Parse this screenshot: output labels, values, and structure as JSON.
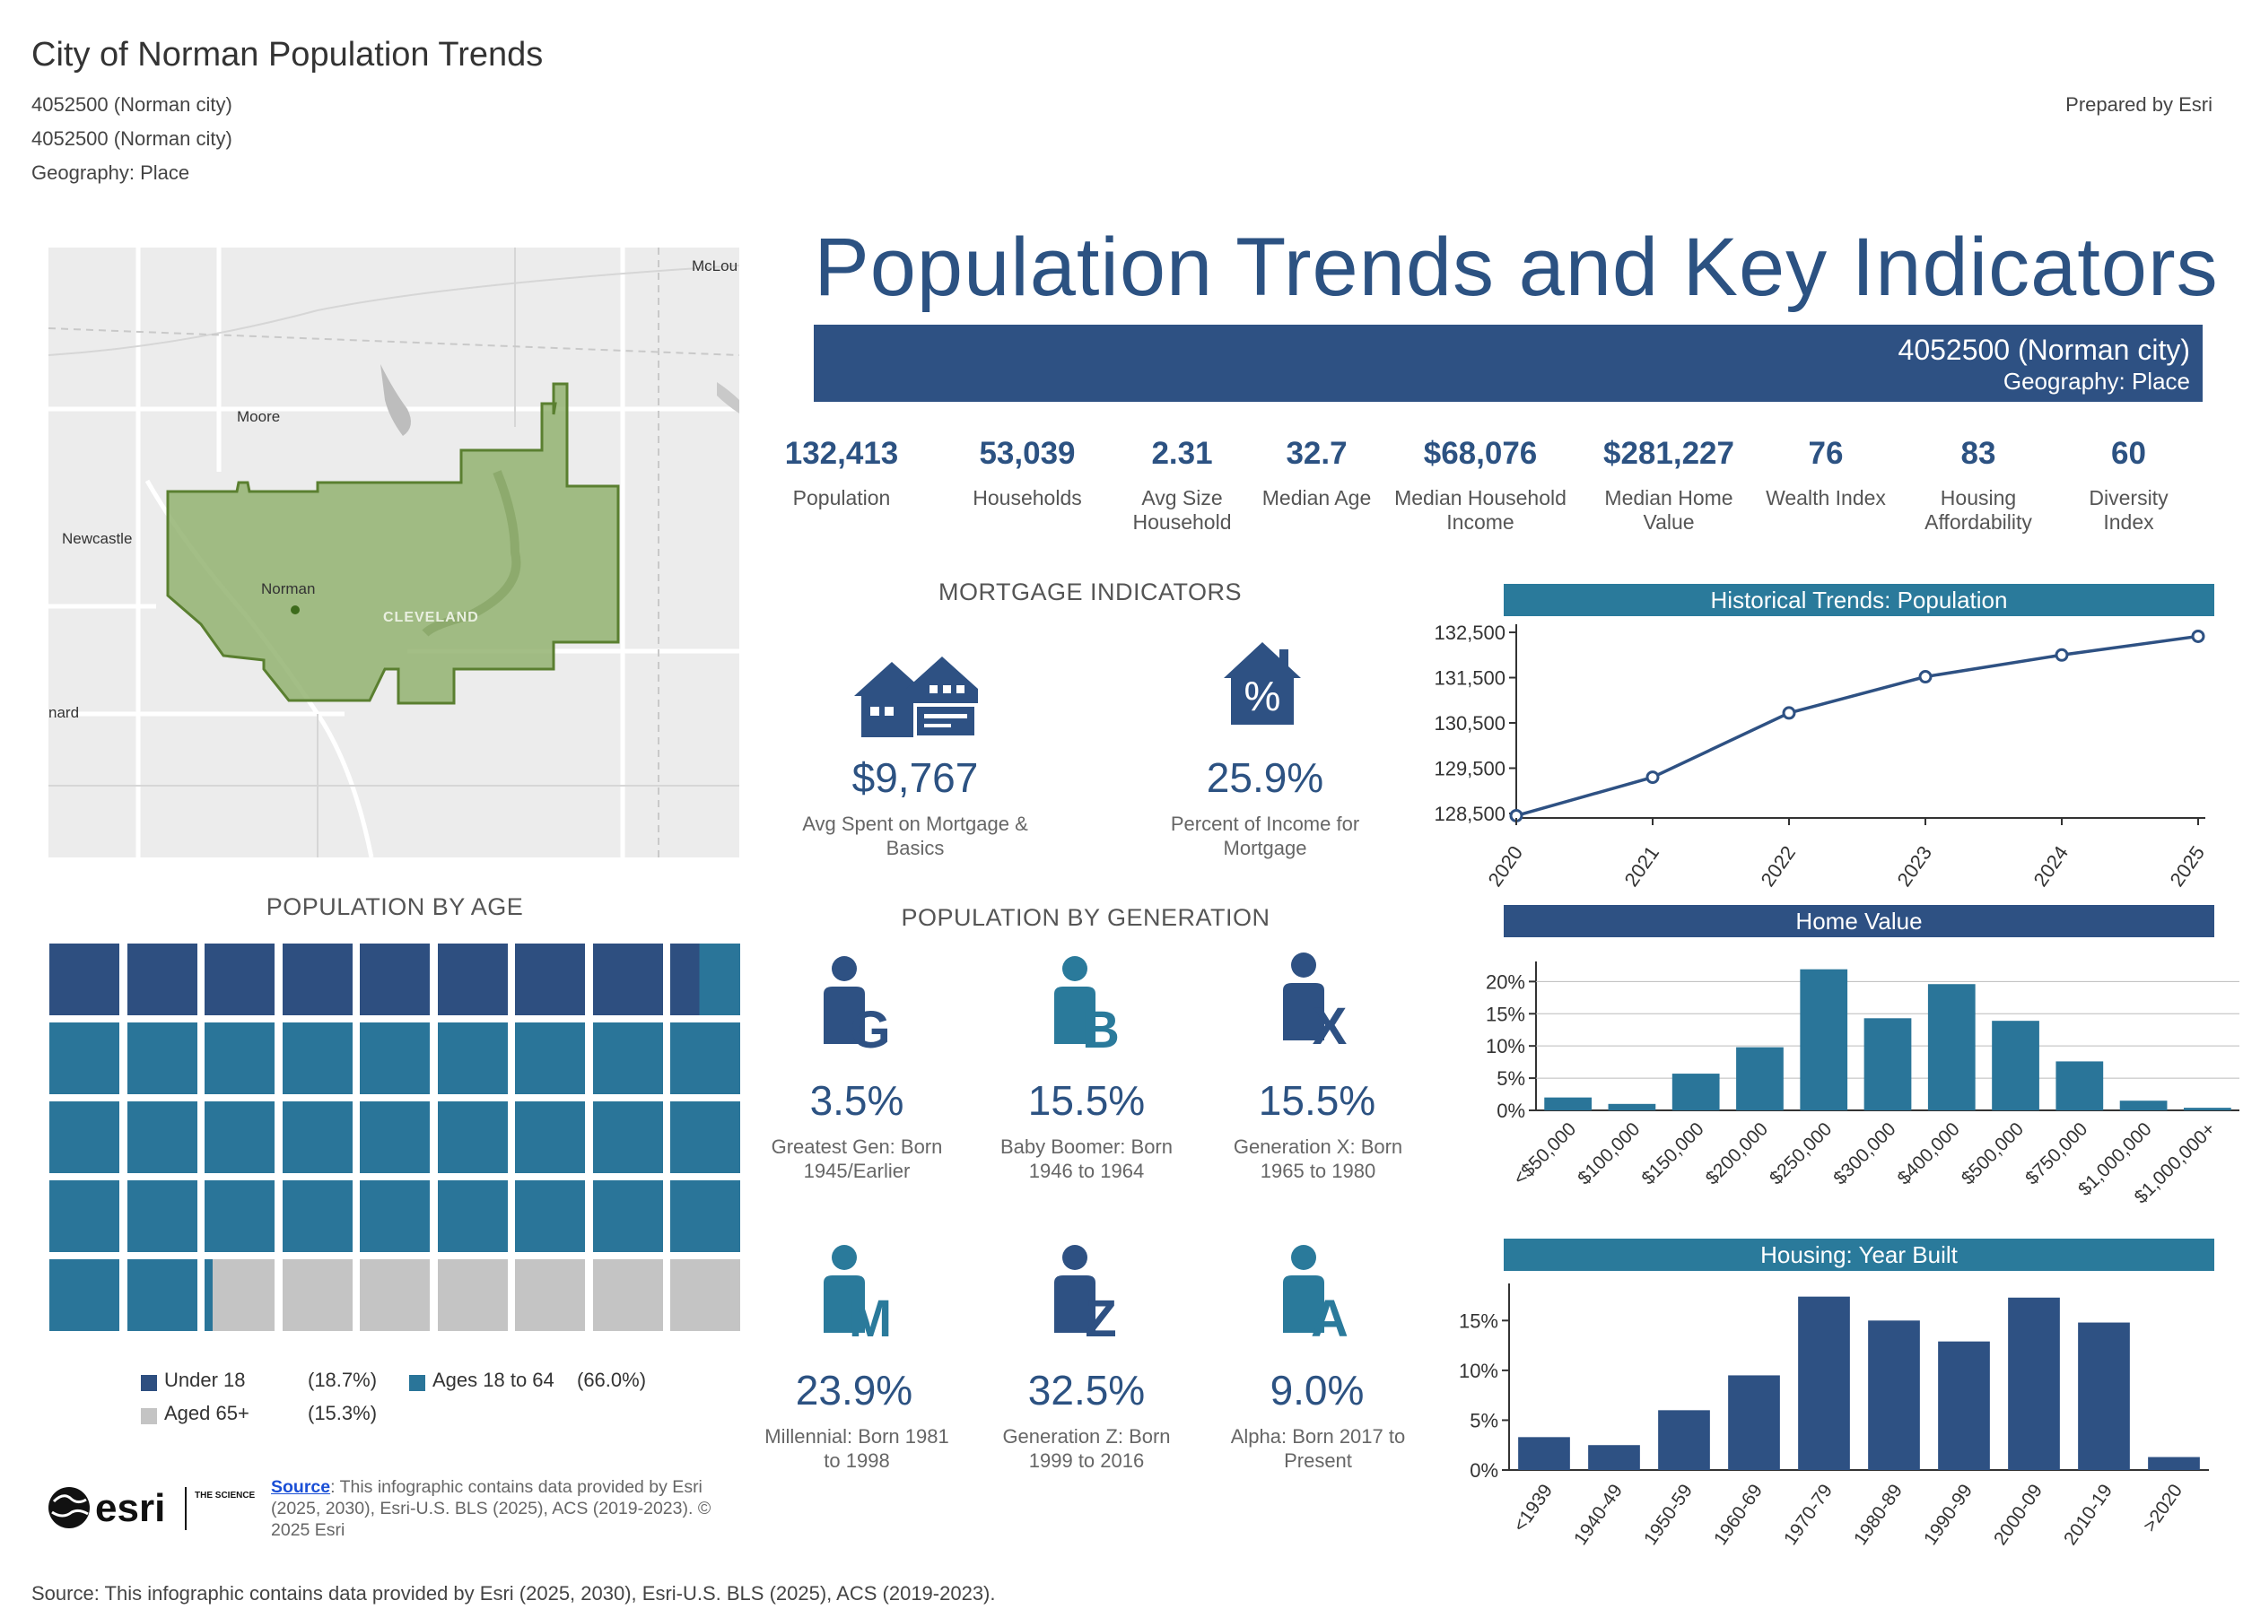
{
  "header": {
    "report_title": "City of Norman Population Trends",
    "line1": "4052500 (Norman city)",
    "line2": "4052500 (Norman city)",
    "line3": "Geography: Place",
    "prepared_by": "Prepared by Esri"
  },
  "map": {
    "labels": {
      "moore": "Moore",
      "newcastle": "Newcastle",
      "norman": "Norman",
      "cleveland": "CLEVELAND",
      "mcloud": "McLou",
      "blanchard": "nard"
    },
    "colors": {
      "boundary_fill": "#8fb06b",
      "boundary_stroke": "#5a7f30",
      "land": "#ececec"
    }
  },
  "main": {
    "title": "Population Trends and Key Indicators",
    "band_name": "4052500 (Norman city)",
    "band_geo": "Geography: Place"
  },
  "kpis": [
    {
      "value": "132,413",
      "label": "Population"
    },
    {
      "value": "53,039",
      "label": "Households"
    },
    {
      "value": "2.31",
      "label": "Avg Size Household"
    },
    {
      "value": "32.7",
      "label": "Median Age"
    },
    {
      "value": "$68,076",
      "label": "Median Household Income"
    },
    {
      "value": "$281,227",
      "label": "Median Home Value"
    },
    {
      "value": "76",
      "label": "Wealth Index"
    },
    {
      "value": "83",
      "label": "Housing Affordability"
    },
    {
      "value": "60",
      "label": "Diversity Index"
    }
  ],
  "mortgage": {
    "title": "MORTGAGE INDICATORS",
    "items": [
      {
        "value": "$9,767",
        "label": "Avg Spent on Mortgage & Basics",
        "icon": "house-payment-icon"
      },
      {
        "value": "25.9%",
        "label": "Percent of Income for Mortgage",
        "icon": "house-percent-icon"
      }
    ],
    "percent_symbol": "%"
  },
  "generation": {
    "title": "POPULATION BY GENERATION",
    "items": [
      {
        "letter": "G",
        "value": "3.5%",
        "label": "Greatest Gen:  Born 1945/Earlier",
        "color": "#2e5183"
      },
      {
        "letter": "B",
        "value": "15.5%",
        "label": "Baby Boomer:  Born 1946 to 1964",
        "color": "#2a7a9b"
      },
      {
        "letter": "X",
        "value": "15.5%",
        "label": "Generation X:  Born 1965 to 1980",
        "color": "#2e5183"
      },
      {
        "letter": "M",
        "value": "23.9%",
        "label": "Millennial:  Born 1981 to 1998",
        "color": "#2a7a9b"
      },
      {
        "letter": "Z",
        "value": "32.5%",
        "label": "Generation Z:   Born 1999 to 2016",
        "color": "#2e5183"
      },
      {
        "letter": "A",
        "value": "9.0%",
        "label": "Alpha:  Born  2017 to Present",
        "color": "#2a7a9b"
      }
    ]
  },
  "age": {
    "title": "POPULATION BY AGE",
    "legend": [
      {
        "label": "Under 18",
        "pct": "(18.7%)",
        "color": "#2e4f80"
      },
      {
        "label": "Ages 18 to 64",
        "pct": "(66.0%)",
        "color": "#2a7599"
      },
      {
        "label": "Aged 65+",
        "pct": "(15.3%)",
        "color": "#c4c4c4"
      }
    ]
  },
  "source_small": {
    "link": "Source",
    "text": ": This infographic contains data provided by Esri (2025, 2030), Esri-U.S. BLS (2025), ACS (2019-2023). © 2025 Esri"
  },
  "esri_logo": {
    "word": "esri",
    "tagline": "THE SCIENCE OF WHERE"
  },
  "footer": {
    "source": "Source: This infographic contains data provided by Esri (2025, 2030), Esri-U.S. BLS (2025), ACS (2019-2023)."
  },
  "chart_data": [
    {
      "id": "population-trend",
      "type": "line",
      "title": "Historical Trends: Population",
      "x": [
        "2020",
        "2021",
        "2022",
        "2023",
        "2024",
        "2025"
      ],
      "values": [
        128450,
        129300,
        130720,
        131520,
        132000,
        132413
      ],
      "yticks": [
        128500,
        129500,
        130500,
        131500,
        132500
      ],
      "ytick_labels": [
        "128,500",
        "129,500",
        "130,500",
        "131,500",
        "132,500"
      ],
      "ylim": [
        128400,
        132600
      ],
      "color": "#2e5183"
    },
    {
      "id": "home-value",
      "type": "bar",
      "title": "Home Value",
      "categories": [
        "<$50,000",
        "$100,000",
        "$150,000",
        "$200,000",
        "$250,000",
        "$300,000",
        "$400,000",
        "$500,000",
        "$750,000",
        "$1,000,000",
        "$1,000,000+"
      ],
      "values": [
        2.0,
        1.0,
        5.7,
        9.8,
        21.9,
        14.3,
        19.6,
        13.9,
        7.6,
        1.5,
        0.4
      ],
      "yticks": [
        0,
        5,
        10,
        15,
        20
      ],
      "ytick_labels": [
        "0%",
        "5%",
        "10%",
        "15%",
        "20%"
      ],
      "ylim": [
        0,
        22
      ],
      "color": "#2a7599"
    },
    {
      "id": "year-built",
      "type": "bar",
      "title": "Housing: Year Built",
      "categories": [
        "<1939",
        "1940-49",
        "1950-59",
        "1960-69",
        "1970-79",
        "1980-89",
        "1990-99",
        "2000-09",
        "2010-19",
        ">2020"
      ],
      "values": [
        3.3,
        2.5,
        6.0,
        9.5,
        17.4,
        15.0,
        12.9,
        17.3,
        14.8,
        1.3
      ],
      "yticks": [
        0,
        5,
        10,
        15
      ],
      "ytick_labels": [
        "0%",
        "5%",
        "10%",
        "15%"
      ],
      "ylim": [
        0,
        18
      ],
      "color": "#2e5183"
    },
    {
      "id": "population-by-age",
      "type": "waffle",
      "title": "POPULATION BY AGE",
      "categories": [
        "Under 18",
        "Ages 18 to 64",
        "Aged 65+"
      ],
      "values": [
        18.7,
        66.0,
        15.3
      ],
      "colors": [
        "#2e4f80",
        "#2a7599",
        "#c4c4c4"
      ]
    }
  ]
}
